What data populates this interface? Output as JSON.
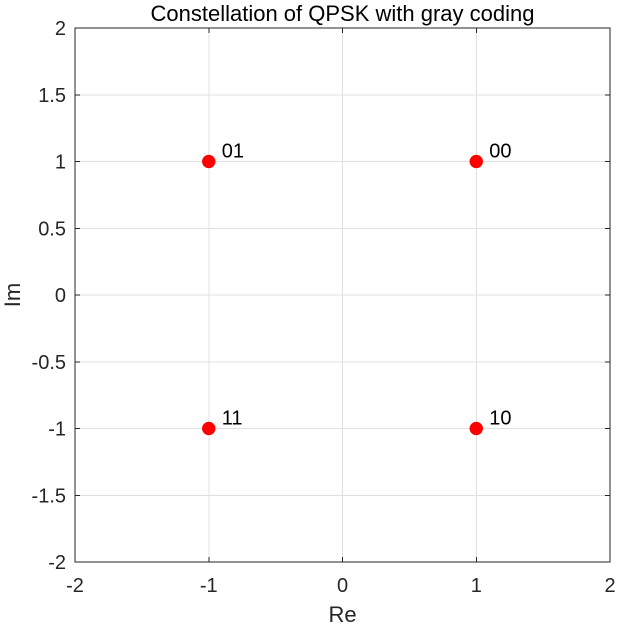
{
  "chart_data": {
    "type": "scatter",
    "title": "Constellation of QPSK with gray coding",
    "xlabel": "Re",
    "ylabel": "Im",
    "xlim": [
      -2,
      2
    ],
    "ylim": [
      -2,
      2
    ],
    "xticks": [
      -2,
      -1,
      0,
      1,
      2
    ],
    "xtick_labels": [
      "-2",
      "-1",
      "0",
      "1",
      "2"
    ],
    "yticks": [
      -2,
      -1.5,
      -1,
      -0.5,
      0,
      0.5,
      1,
      1.5,
      2
    ],
    "ytick_labels": [
      "-2",
      "-1.5",
      "-1",
      "-0.5",
      "0",
      "0.5",
      "1",
      "1.5",
      "2"
    ],
    "grid": true,
    "series": [
      {
        "color": "#ff0000",
        "points": [
          {
            "x": 1,
            "y": 1,
            "label": "00"
          },
          {
            "x": -1,
            "y": 1,
            "label": "01"
          },
          {
            "x": -1,
            "y": -1,
            "label": "11"
          },
          {
            "x": 1,
            "y": -1,
            "label": "10"
          }
        ]
      }
    ]
  },
  "colors": {
    "axis": "#262626",
    "title": "#000000",
    "grid": "#e0e0e0",
    "background": "#ffffff"
  }
}
